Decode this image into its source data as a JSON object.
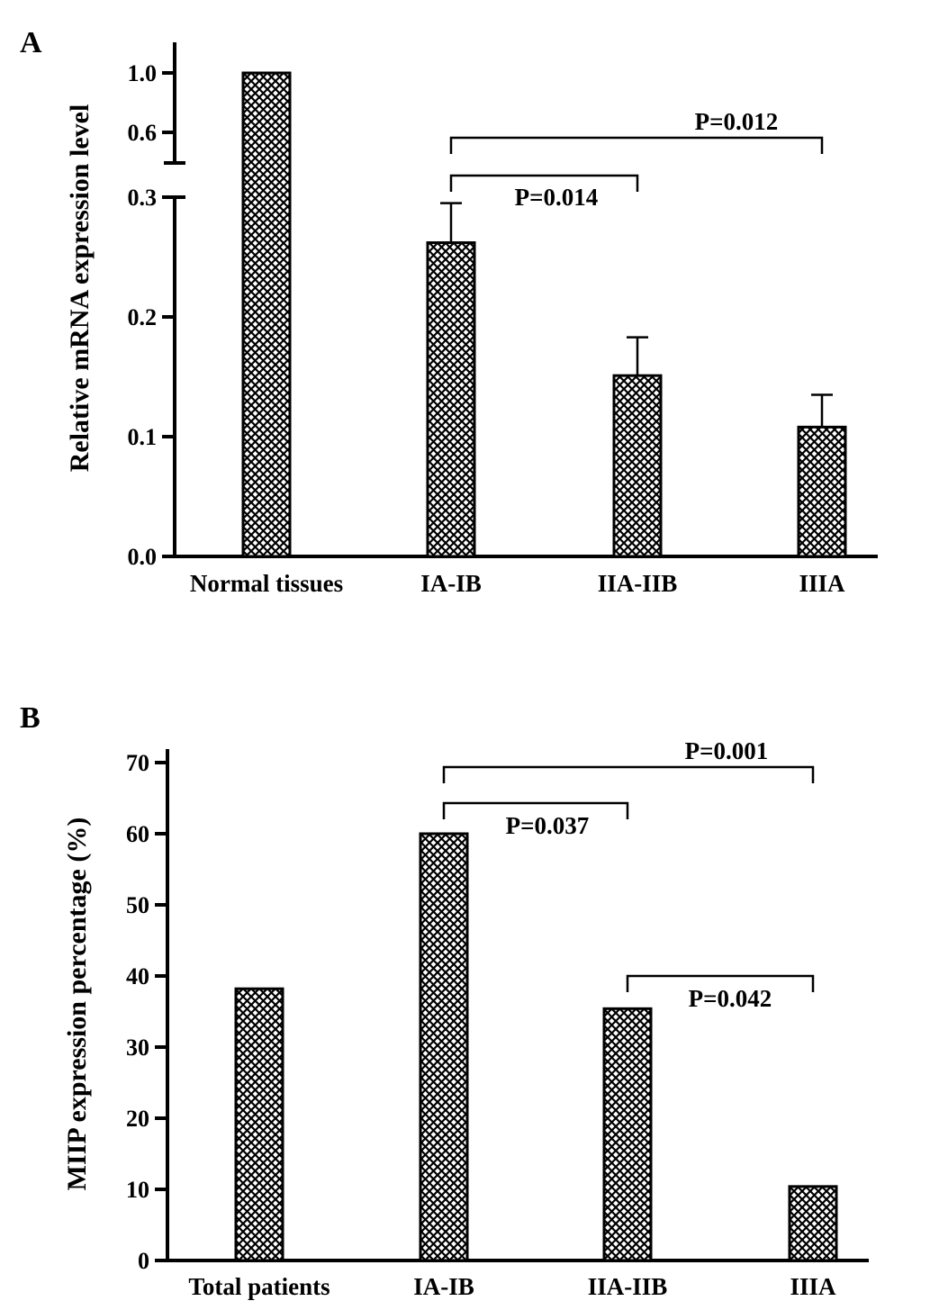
{
  "chart_data": [
    {
      "panel": "A",
      "type": "bar",
      "ylabel": "Relative mRNA expression level",
      "xlabel": "",
      "categories": [
        "Normal tissues",
        "IA-IB",
        "IIA-IIB",
        "IIIA"
      ],
      "values": [
        1.0,
        0.262,
        0.151,
        0.108
      ],
      "error_upper": [
        null,
        0.295,
        0.183,
        0.135
      ],
      "yaxis_break": [
        0.3,
        0.6
      ],
      "ylim": [
        0,
        1.0
      ],
      "yticks_lower": [
        "0.0",
        "0.1",
        "0.2",
        "0.3"
      ],
      "yticks_upper": [
        "0.6",
        "1.0"
      ],
      "comparisons": [
        {
          "from": "IA-IB",
          "to": "IIA-IIB",
          "label": "P=0.014"
        },
        {
          "from": "IA-IB",
          "to": "IIIA",
          "label": "P=0.012"
        }
      ],
      "pattern": "crosshatch",
      "grid": false
    },
    {
      "panel": "B",
      "type": "bar",
      "ylabel": "MIIP expression percentage (%)",
      "xlabel": "",
      "categories": [
        "Total patients",
        "IA-IB",
        "IIA-IIB",
        "IIIA"
      ],
      "values": [
        38.2,
        60.0,
        35.4,
        10.4
      ],
      "ylim": [
        0,
        70
      ],
      "yticks": [
        "0",
        "10",
        "20",
        "30",
        "40",
        "50",
        "60",
        "70"
      ],
      "comparisons": [
        {
          "from": "IA-IB",
          "to": "IIIA",
          "label": "P=0.001"
        },
        {
          "from": "IA-IB",
          "to": "IIA-IIB",
          "label": "P=0.037"
        },
        {
          "from": "IIA-IIB",
          "to": "IIIA",
          "label": "P=0.042"
        }
      ],
      "pattern": "crosshatch",
      "grid": false
    }
  ]
}
